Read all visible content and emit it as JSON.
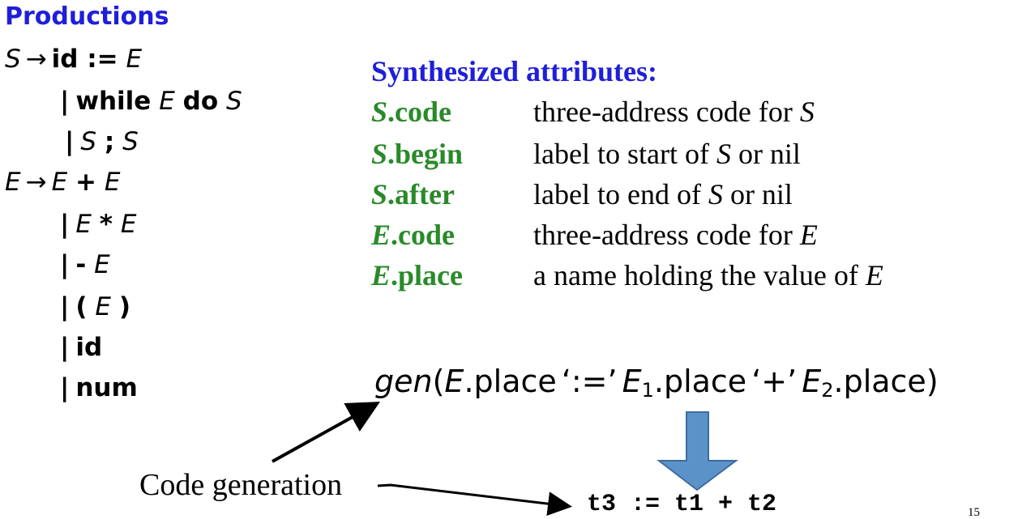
{
  "colors": {
    "productions_title": "#1f1fd9",
    "synth_title": "#1f1fd9",
    "attr_name": "#2a8a2a",
    "arrow_fill": "#5b93c9",
    "arrow_stroke": "#3c6d9f"
  },
  "productions": {
    "title": "Productions",
    "lines": [
      {
        "lhs": "S",
        "arrow": "→",
        "parts": [
          {
            "t": "kw",
            "v": "id :="
          },
          {
            "t": "nt",
            "v": "E"
          }
        ]
      },
      {
        "bar": "|",
        "parts": [
          {
            "t": "kw",
            "v": "while"
          },
          {
            "t": "nt",
            "v": "E"
          },
          {
            "t": "kw",
            "v": "do"
          },
          {
            "t": "nt",
            "v": "S"
          }
        ]
      },
      {
        "bar": "|",
        "parts": [
          {
            "t": "nt",
            "v": "S"
          },
          {
            "t": "kw",
            "v": ";"
          },
          {
            "t": "nt",
            "v": "S"
          }
        ]
      },
      {
        "lhs": "E",
        "arrow": "→",
        "parts": [
          {
            "t": "nt",
            "v": "E"
          },
          {
            "t": "kw",
            "v": "+"
          },
          {
            "t": "nt",
            "v": "E"
          }
        ]
      },
      {
        "bar": "|",
        "parts": [
          {
            "t": "nt",
            "v": "E"
          },
          {
            "t": "kw",
            "v": "*"
          },
          {
            "t": "nt",
            "v": "E"
          }
        ]
      },
      {
        "bar": "|",
        "parts": [
          {
            "t": "kw",
            "v": "-"
          },
          {
            "t": "nt",
            "v": "E"
          }
        ]
      },
      {
        "bar": "|",
        "parts": [
          {
            "t": "kw",
            "v": "("
          },
          {
            "t": "nt",
            "v": "E"
          },
          {
            "t": "kw",
            "v": ")"
          }
        ]
      },
      {
        "bar": "|",
        "parts": [
          {
            "t": "kw",
            "v": "id"
          }
        ]
      },
      {
        "bar": "|",
        "parts": [
          {
            "t": "kw",
            "v": "num"
          }
        ]
      }
    ]
  },
  "synthesized": {
    "title": "Synthesized attributes:",
    "attributes": [
      {
        "nt": "S",
        "field": ".code",
        "desc_pre": "three-address code for ",
        "desc_nt": "S",
        "desc_post": ""
      },
      {
        "nt": "S",
        "field": ".begin",
        "desc_pre": "label to start of ",
        "desc_nt": "S",
        "desc_post": " or nil"
      },
      {
        "nt": "S",
        "field": ".after",
        "desc_pre": "label to end of ",
        "desc_nt": "S",
        "desc_post": " or nil"
      },
      {
        "nt": "E",
        "field": ".code",
        "desc_pre": "three-address code for ",
        "desc_nt": "E",
        "desc_post": ""
      },
      {
        "nt": "E",
        "field": ".place",
        "desc_pre": "a name holding the value of ",
        "desc_nt": "E",
        "desc_post": ""
      }
    ]
  },
  "gen_expr": {
    "fn": "gen",
    "open": "(",
    "e": "E",
    "place1": ".place",
    "q1": "‘:=’",
    "e1": "E",
    "sub1": "1",
    "place2": ".place",
    "q2": "‘+’",
    "e2": "E",
    "sub2": "2",
    "place3": ".place",
    "close": ")"
  },
  "code_generation_label": "Code generation",
  "three_address": "t3 := t1 + t2",
  "page_number": "15"
}
